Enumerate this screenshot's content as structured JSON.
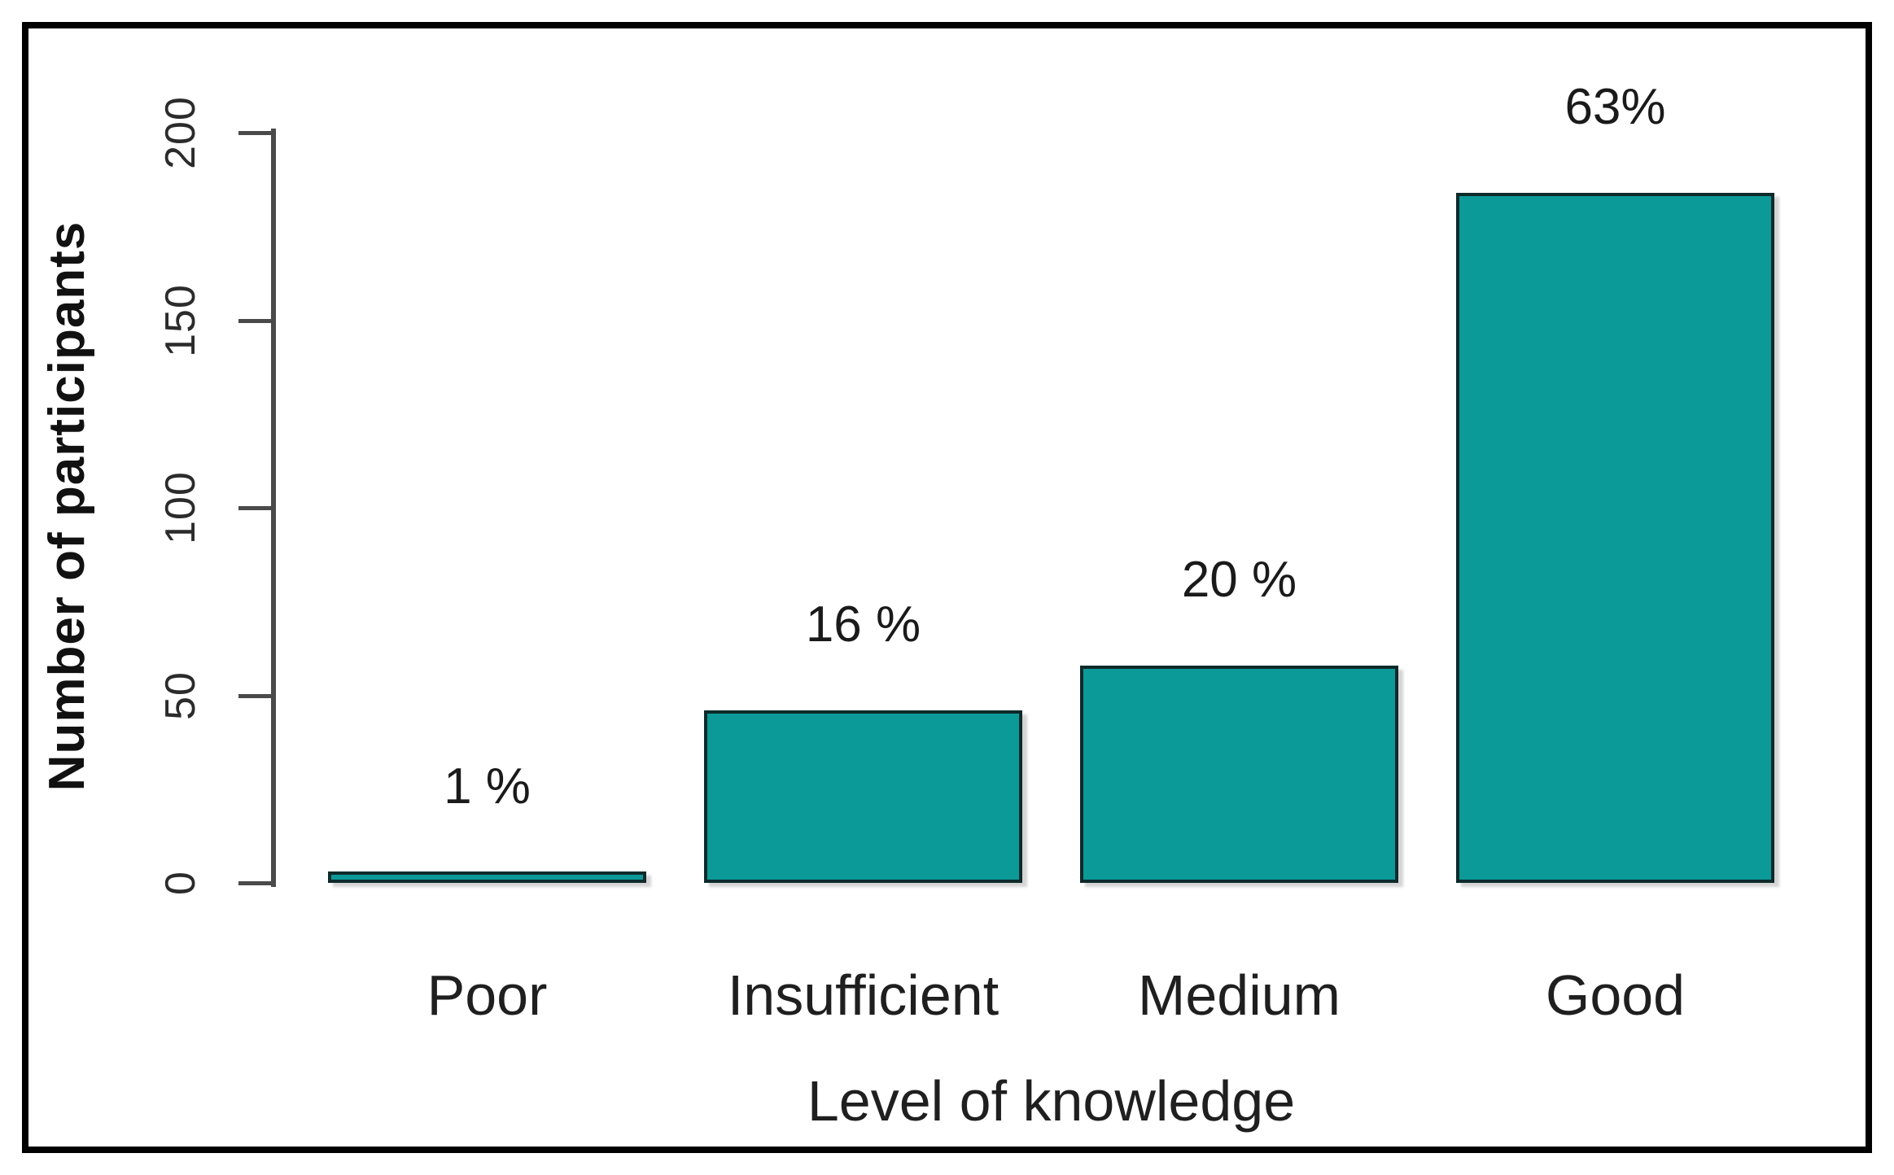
{
  "figure": {
    "background": "#ffffff",
    "frame_border_color": "#000000"
  },
  "chart_data": {
    "type": "bar",
    "categories": [
      "Poor",
      "Insufficient",
      "Medium",
      "Good"
    ],
    "values": [
      3,
      46,
      58,
      184
    ],
    "bar_labels": [
      "1 %",
      "16 %",
      "20 %",
      "63%"
    ],
    "xlabel": "Level of knowledge",
    "ylabel": "Number of participants",
    "ylim": [
      0,
      200
    ],
    "yticks": [
      0,
      50,
      100,
      150,
      200
    ],
    "grid": false,
    "legend": null,
    "bar_color": "#0c9a99",
    "bar_border_color": "#0e2a2a",
    "axis_color": "#4a4a4a",
    "text_color": "#1a1a1a"
  }
}
